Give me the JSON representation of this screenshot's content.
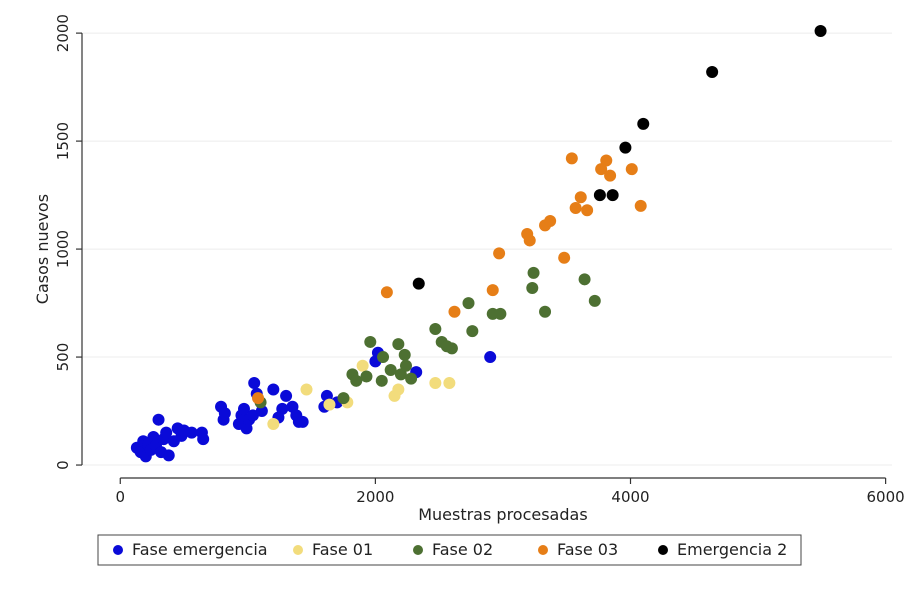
{
  "chart_data": {
    "type": "scatter",
    "xlabel": "Muestras procesadas",
    "ylabel": "Casos nuevos",
    "xlim": [
      -300,
      6050
    ],
    "ylim": [
      -60,
      2070
    ],
    "xticks": [
      0,
      2000,
      4000,
      6000
    ],
    "yticks": [
      0,
      500,
      1000,
      1500,
      2000
    ],
    "grid": "horizontal",
    "legend_position": "bottom",
    "series": [
      {
        "name": "Fase emergencia",
        "color": "#0a0ad8",
        "points": [
          [
            130,
            80
          ],
          [
            160,
            60
          ],
          [
            180,
            110
          ],
          [
            200,
            40
          ],
          [
            220,
            95
          ],
          [
            240,
            70
          ],
          [
            260,
            130
          ],
          [
            280,
            90
          ],
          [
            300,
            210
          ],
          [
            320,
            60
          ],
          [
            340,
            120
          ],
          [
            360,
            150
          ],
          [
            380,
            45
          ],
          [
            420,
            110
          ],
          [
            450,
            170
          ],
          [
            480,
            135
          ],
          [
            500,
            160
          ],
          [
            560,
            150
          ],
          [
            640,
            150
          ],
          [
            650,
            120
          ],
          [
            790,
            270
          ],
          [
            810,
            210
          ],
          [
            820,
            240
          ],
          [
            930,
            190
          ],
          [
            950,
            230
          ],
          [
            970,
            260
          ],
          [
            990,
            170
          ],
          [
            1010,
            210
          ],
          [
            1040,
            230
          ],
          [
            1050,
            380
          ],
          [
            1070,
            330
          ],
          [
            1110,
            250
          ],
          [
            1200,
            350
          ],
          [
            1240,
            220
          ],
          [
            1270,
            260
          ],
          [
            1300,
            320
          ],
          [
            1350,
            270
          ],
          [
            1380,
            230
          ],
          [
            1400,
            200
          ],
          [
            1430,
            200
          ],
          [
            1600,
            270
          ],
          [
            1620,
            320
          ],
          [
            1700,
            290
          ],
          [
            2000,
            480
          ],
          [
            2020,
            520
          ],
          [
            2320,
            430
          ],
          [
            2900,
            500
          ]
        ]
      },
      {
        "name": "Fase 01",
        "color": "#f2dc7c",
        "points": [
          [
            1200,
            190
          ],
          [
            1460,
            350
          ],
          [
            1640,
            280
          ],
          [
            1780,
            290
          ],
          [
            1900,
            460
          ],
          [
            2150,
            320
          ],
          [
            2180,
            350
          ],
          [
            2470,
            380
          ],
          [
            2580,
            380
          ]
        ]
      },
      {
        "name": "Fase 02",
        "color": "#4d7032",
        "points": [
          [
            1100,
            290
          ],
          [
            1750,
            310
          ],
          [
            1820,
            420
          ],
          [
            1850,
            390
          ],
          [
            1930,
            410
          ],
          [
            1960,
            570
          ],
          [
            2050,
            390
          ],
          [
            2060,
            500
          ],
          [
            2120,
            440
          ],
          [
            2180,
            560
          ],
          [
            2200,
            420
          ],
          [
            2230,
            510
          ],
          [
            2240,
            460
          ],
          [
            2280,
            400
          ],
          [
            2470,
            630
          ],
          [
            2520,
            570
          ],
          [
            2560,
            550
          ],
          [
            2600,
            540
          ],
          [
            2730,
            750
          ],
          [
            2760,
            620
          ],
          [
            2920,
            700
          ],
          [
            2980,
            700
          ],
          [
            3230,
            820
          ],
          [
            3240,
            890
          ],
          [
            3330,
            710
          ],
          [
            3640,
            860
          ],
          [
            3720,
            760
          ]
        ]
      },
      {
        "name": "Fase 03",
        "color": "#e67e17",
        "points": [
          [
            1080,
            310
          ],
          [
            2090,
            800
          ],
          [
            2620,
            710
          ],
          [
            2920,
            810
          ],
          [
            2970,
            980
          ],
          [
            3190,
            1070
          ],
          [
            3210,
            1040
          ],
          [
            3330,
            1110
          ],
          [
            3370,
            1130
          ],
          [
            3480,
            960
          ],
          [
            3540,
            1420
          ],
          [
            3570,
            1190
          ],
          [
            3610,
            1240
          ],
          [
            3660,
            1180
          ],
          [
            3770,
            1370
          ],
          [
            3810,
            1410
          ],
          [
            3840,
            1340
          ],
          [
            4010,
            1370
          ],
          [
            4080,
            1200
          ]
        ]
      },
      {
        "name": "Emergencia 2",
        "color": "#000000",
        "points": [
          [
            2340,
            840
          ],
          [
            3760,
            1250
          ],
          [
            3860,
            1250
          ],
          [
            3960,
            1470
          ],
          [
            4100,
            1580
          ],
          [
            4640,
            1820
          ],
          [
            5490,
            2010
          ]
        ]
      }
    ]
  }
}
